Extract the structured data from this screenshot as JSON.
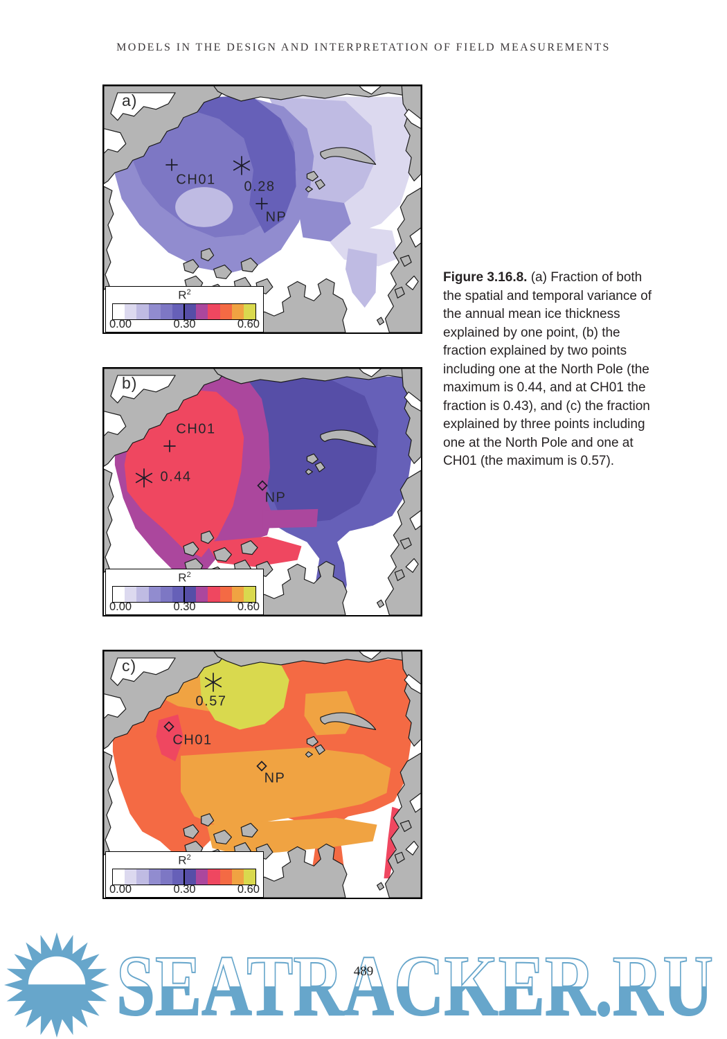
{
  "header": {
    "title": "MODELS IN THE DESIGN AND INTERPRETATION OF FIELD MEASUREMENTS"
  },
  "figure": {
    "land_color": "#b5b5b5",
    "colorbar": {
      "title": "R",
      "title_sup": "2",
      "ticks": [
        "0.00",
        "0.30",
        "0.60"
      ],
      "range": [
        0.0,
        0.6
      ],
      "colors": [
        "#ffffff",
        "#dcd9ef",
        "#bfbbe3",
        "#918ccf",
        "#7d77c4",
        "#6660b8",
        "#564ea7",
        "#ab479d",
        "#ef4760",
        "#f46a44",
        "#f0a342",
        "#d9d94e"
      ]
    },
    "panels": [
      {
        "letter": "a)",
        "markers": {
          "station": {
            "symbol": "plus",
            "label": "CH01"
          },
          "max": {
            "symbol": "asterisk",
            "label": "0.28"
          },
          "np": {
            "symbol": "plus",
            "label": "NP"
          }
        }
      },
      {
        "letter": "b)",
        "markers": {
          "station": {
            "symbol": "plus",
            "label": "CH01"
          },
          "max": {
            "symbol": "asterisk",
            "label": "0.44"
          },
          "np": {
            "symbol": "diamond",
            "label": "NP"
          }
        }
      },
      {
        "letter": "c)",
        "markers": {
          "station": {
            "symbol": "diamond",
            "label": "CH01"
          },
          "max": {
            "symbol": "asterisk",
            "label": "0.57"
          },
          "np": {
            "symbol": "diamond",
            "label": "NP"
          }
        }
      }
    ],
    "caption": {
      "label": "Figure 3.16.8.",
      "body": "(a) Fraction of both the spatial and temporal variance of the annual mean ice thickness explained by one point, (b) the fraction explained by two points including one at the North Pole (the maximum is 0.44, and at CH01 the fraction is 0.43), and (c) the fraction explained by three points including one at the North Pole and one at CH01 (the maximum is 0.57)."
    }
  },
  "footer": {
    "page_number": "489"
  },
  "watermark": {
    "text": "SEATRACKER.RU",
    "color": "#67a6cb"
  }
}
